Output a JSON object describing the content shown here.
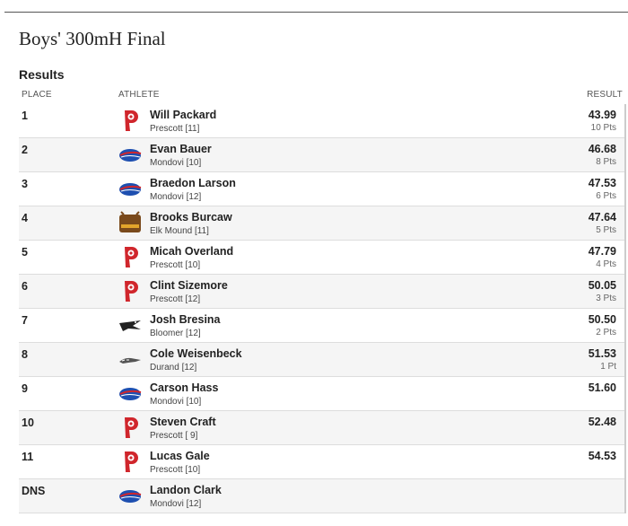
{
  "header": {
    "title": "Boys' 300mH Final",
    "section": "Results"
  },
  "table": {
    "columns": [
      "PLACE",
      "ATHLETE",
      "RESULT"
    ],
    "rows": [
      {
        "place": "1",
        "name": "Will Packard",
        "team": "Prescott [11]",
        "result": "43.99",
        "points": "10 Pts"
      },
      {
        "place": "2",
        "name": "Evan Bauer",
        "team": "Mondovi [10]",
        "result": "46.68",
        "points": "8 Pts"
      },
      {
        "place": "3",
        "name": "Braedon Larson",
        "team": "Mondovi [12]",
        "result": "47.53",
        "points": "6 Pts"
      },
      {
        "place": "4",
        "name": "Brooks Burcaw",
        "team": "Elk Mound [11]",
        "result": "47.64",
        "points": "5 Pts"
      },
      {
        "place": "5",
        "name": "Micah Overland",
        "team": "Prescott [10]",
        "result": "47.79",
        "points": "4 Pts"
      },
      {
        "place": "6",
        "name": "Clint Sizemore",
        "team": "Prescott [12]",
        "result": "50.05",
        "points": "3 Pts"
      },
      {
        "place": "7",
        "name": "Josh Bresina",
        "team": "Bloomer [12]",
        "result": "50.50",
        "points": "2 Pts"
      },
      {
        "place": "8",
        "name": "Cole Weisenbeck",
        "team": "Durand [12]",
        "result": "51.53",
        "points": "1 Pt"
      },
      {
        "place": "9",
        "name": "Carson Hass",
        "team": "Mondovi [10]",
        "result": "51.60"
      },
      {
        "place": "10",
        "name": "Steven Craft",
        "team": "Prescott [ 9]",
        "result": "52.48"
      },
      {
        "place": "11",
        "name": "Lucas Gale",
        "team": "Prescott [10]",
        "result": "54.53"
      },
      {
        "place": "DNS",
        "name": "Landon Clark",
        "team": "Mondovi [12]"
      }
    ]
  }
}
